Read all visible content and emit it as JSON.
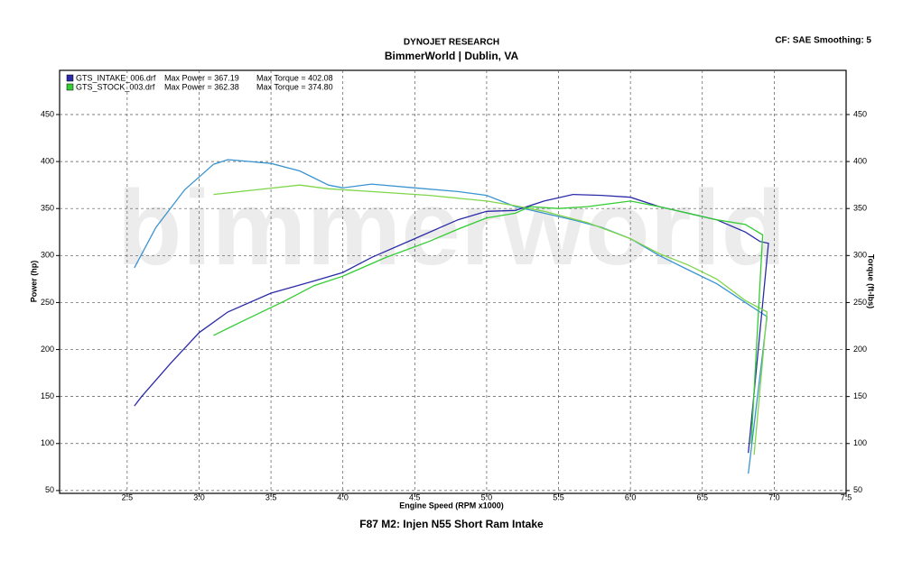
{
  "chart_data": {
    "type": "line",
    "title": "DYNOJET RESEARCH",
    "subtitle": "BimmerWorld | Dublin, VA",
    "settings_label": "CF: SAE  Smoothing: 5",
    "caption": "F87 M2: Injen N55 Short Ram Intake",
    "watermark": "bimmerworld",
    "x_label": "Engine Speed (RPM x1000)",
    "y_label": "Power (hp)",
    "y2_label": "Torque (ft-lbs)",
    "grid": true,
    "xlim": [
      2.03,
      7.5
    ],
    "xticks": [
      2.5,
      {
        "value": 3,
        "label": "3.0"
      },
      3.5,
      {
        "value": 4,
        "label": "4.0"
      },
      4.5,
      {
        "value": 5,
        "label": "5.0"
      },
      5.5,
      {
        "value": 6,
        "label": "6.0"
      },
      6.5,
      {
        "value": 7,
        "label": "7.0"
      },
      7.5
    ],
    "ylim": [
      47,
      497
    ],
    "yticks": [
      50,
      100,
      150,
      200,
      250,
      300,
      350,
      400,
      450
    ],
    "y2lim": [
      47,
      497
    ],
    "y2ticks": [
      50,
      100,
      150,
      200,
      250,
      300,
      350,
      400,
      450
    ],
    "series": [
      {
        "name": "GTS_INTAKE_006.drf",
        "color": "#2b2ba8",
        "max_power": "Max Power = 367.19",
        "max_torque": "Max Torque = 402.08",
        "power": {
          "color": "#2b2ba8",
          "x": [
            2.55,
            2.6,
            2.8,
            3.0,
            3.2,
            3.5,
            3.8,
            4.0,
            4.2,
            4.5,
            4.8,
            5.0,
            5.2,
            5.4,
            5.6,
            5.8,
            6.0,
            6.2,
            6.4,
            6.6,
            6.8,
            6.9,
            6.96,
            6.82
          ],
          "values": [
            140,
            150,
            185,
            218,
            240,
            260,
            273,
            282,
            298,
            318,
            338,
            347,
            348,
            358,
            365,
            364,
            362,
            352,
            345,
            338,
            325,
            315,
            313,
            90
          ]
        },
        "torque": {
          "color": "#3a94d0",
          "axis": "y2",
          "x": [
            2.55,
            2.7,
            2.9,
            3.1,
            3.2,
            3.5,
            3.7,
            3.9,
            4.0,
            4.2,
            4.5,
            4.8,
            5.0,
            5.2,
            5.4,
            5.6,
            5.8,
            6.0,
            6.2,
            6.4,
            6.6,
            6.8,
            6.95,
            6.82
          ],
          "values": [
            287,
            330,
            370,
            397,
            402,
            398,
            390,
            375,
            372,
            376,
            372,
            368,
            364,
            352,
            345,
            338,
            330,
            318,
            300,
            285,
            270,
            250,
            235,
            68
          ]
        }
      },
      {
        "name": "GTS_STOCK_003.drf",
        "color": "#33cc33",
        "max_power": "Max Power = 362.38",
        "max_torque": "Max Torque = 374.80",
        "power": {
          "color": "#33cc33",
          "x": [
            3.1,
            3.3,
            3.6,
            3.8,
            4.0,
            4.3,
            4.6,
            4.8,
            5.0,
            5.2,
            5.3,
            5.5,
            5.7,
            6.0,
            6.2,
            6.4,
            6.6,
            6.8,
            6.92,
            6.84
          ],
          "values": [
            215,
            230,
            252,
            268,
            278,
            298,
            315,
            328,
            340,
            345,
            352,
            350,
            352,
            358,
            352,
            345,
            338,
            333,
            322,
            100
          ]
        },
        "torque": {
          "color": "#7fd64a",
          "axis": "y2",
          "x": [
            3.1,
            3.4,
            3.7,
            3.9,
            4.2,
            4.6,
            5.0,
            5.2,
            5.4,
            5.7,
            6.0,
            6.2,
            6.4,
            6.6,
            6.8,
            6.95,
            6.86
          ],
          "values": [
            365,
            370,
            375,
            371,
            368,
            364,
            358,
            353,
            347,
            335,
            318,
            302,
            290,
            275,
            252,
            240,
            88
          ]
        }
      }
    ]
  }
}
